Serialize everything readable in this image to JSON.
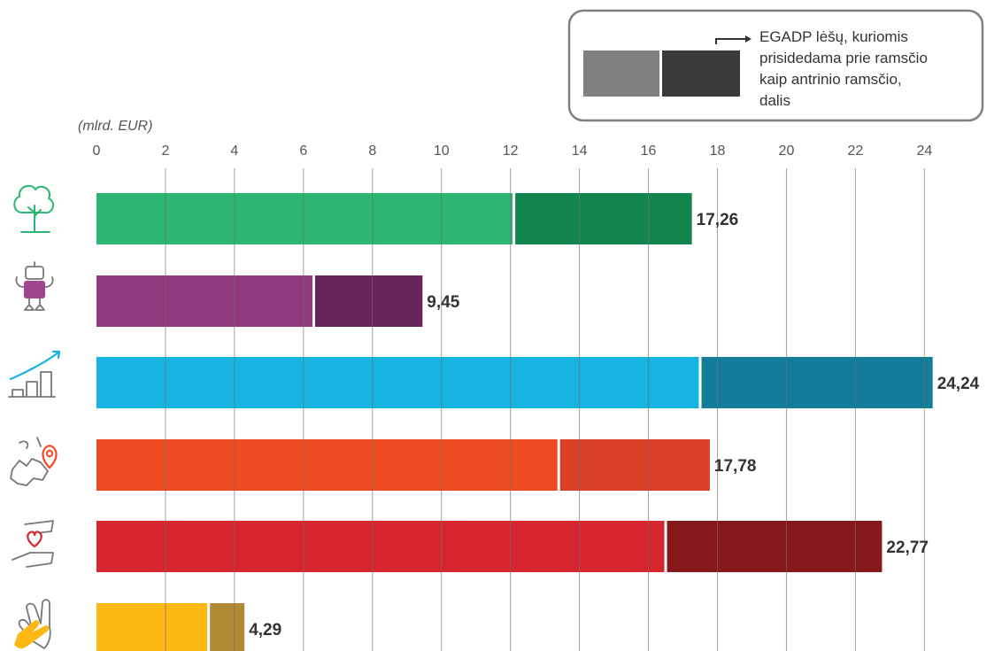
{
  "chart_data": {
    "type": "bar",
    "orientation": "horizontal",
    "stacked": true,
    "unit_label": "(mlrd. EUR)",
    "x_ticks": [
      0,
      2,
      4,
      6,
      8,
      10,
      12,
      14,
      16,
      18,
      20,
      22,
      24
    ],
    "xlim": [
      0,
      25.3
    ],
    "grid": true,
    "legend": {
      "position": "top-right",
      "label": "EGADP lėšų, kuriomis prisidedama prie ramsčio kaip antrinio ramsčio, dalis",
      "label_lines": [
        "EGADP lėšų, kuriomis",
        "prisidedama prie ramsčio",
        "kaip antrinio ramsčio,",
        "dalis"
      ],
      "swatch_main": "#808080",
      "swatch_secondary": "#3a3a3a"
    },
    "rows": [
      {
        "icon": "tree-icon",
        "main": 12.1,
        "secondary": 5.16,
        "total": 17.26,
        "total_label": "17,26",
        "color_main": "#2bb673",
        "color_secondary": "#13864f"
      },
      {
        "icon": "robot-icon",
        "main": 6.3,
        "secondary": 3.15,
        "total": 9.45,
        "total_label": "9,45",
        "color_main": "#923a80",
        "color_secondary": "#68225c"
      },
      {
        "icon": "growth-chart-icon",
        "main": 17.5,
        "secondary": 6.74,
        "total": 24.24,
        "total_label": "24,24",
        "color_main": "#17b3e3",
        "color_secondary": "#117d9b"
      },
      {
        "icon": "europe-map-pin-icon",
        "main": 13.4,
        "secondary": 4.38,
        "total": 17.78,
        "total_label": "17,78",
        "color_main": "#ef4b23",
        "color_secondary": "#dc3f27"
      },
      {
        "icon": "hands-heart-icon",
        "main": 16.5,
        "secondary": 6.27,
        "total": 22.77,
        "total_label": "22,77",
        "color_main": "#d7262f",
        "color_secondary": "#86181b"
      },
      {
        "icon": "hands-icon",
        "main": 3.25,
        "secondary": 1.04,
        "total": 4.29,
        "total_label": "4,29",
        "color_main": "#fdb813",
        "color_secondary": "#b18a33"
      }
    ]
  }
}
